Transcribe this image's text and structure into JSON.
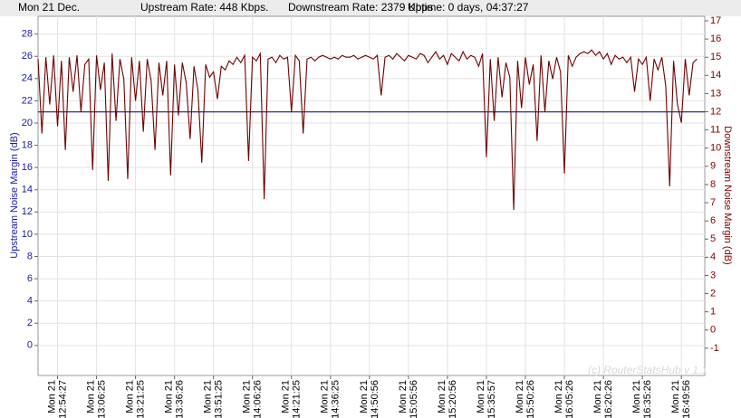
{
  "header": {
    "date": "Mon 21 Dec.",
    "upstream_rate": "Upstream Rate: 448 Kbps.",
    "downstream_rate": "Downstream Rate: 2379 Kbps",
    "uptime": "Uptime: 0 days, 04:37:27"
  },
  "chart_data": {
    "type": "line",
    "ylabel": "Upstream Noise Margin (dB)",
    "y2label": "Downstream Noise Margin (dB)",
    "watermark": "(c) RouterStatsHub v 1.1",
    "x_date_label": "Mon 21",
    "xlim": [
      0,
      171
    ],
    "xticks": [
      {
        "value": 5,
        "label": "12:54:27"
      },
      {
        "value": 15,
        "label": "13:06:25"
      },
      {
        "value": 25,
        "label": "13:21:25"
      },
      {
        "value": 35,
        "label": "13:36:26"
      },
      {
        "value": 45,
        "label": "13:51:25"
      },
      {
        "value": 55,
        "label": "14:06:26"
      },
      {
        "value": 65,
        "label": "14:21:25"
      },
      {
        "value": 75,
        "label": "14:36:25"
      },
      {
        "value": 85,
        "label": "14:50:56"
      },
      {
        "value": 95,
        "label": "15:05:56"
      },
      {
        "value": 105,
        "label": "15:20:56"
      },
      {
        "value": 115,
        "label": "15:35:57"
      },
      {
        "value": 125,
        "label": "15:50:26"
      },
      {
        "value": 135,
        "label": "16:05:26"
      },
      {
        "value": 145,
        "label": "16:20:26"
      },
      {
        "value": 155,
        "label": "16:35:26"
      },
      {
        "value": 165,
        "label": "16:49:56"
      }
    ],
    "ylim": [
      -2.7,
      29.6
    ],
    "yticks": [
      0,
      2,
      4,
      6,
      8,
      10,
      12,
      14,
      16,
      18,
      20,
      22,
      24,
      26,
      28
    ],
    "y2lim": [
      -2.5,
      17.25
    ],
    "y2ticks": [
      -1,
      0,
      1,
      2,
      3,
      4,
      5,
      6,
      7,
      8,
      9,
      10,
      11,
      12,
      13,
      14,
      15,
      16,
      17
    ],
    "grid": true,
    "ycolor": "#1a1aa8",
    "y2color": "#800000",
    "series": [
      {
        "name": "Upstream Noise Margin",
        "color": "#1a1a6e",
        "x": [
          0,
          171
        ],
        "values": [
          21,
          21
        ]
      },
      {
        "name": "Downstream Noise Margin",
        "color": "#6e0000",
        "axis": "y2",
        "values": [
          14.9,
          10.8,
          15.0,
          12.4,
          15.1,
          11.2,
          14.8,
          9.9,
          15.0,
          13.1,
          15.1,
          12.0,
          14.6,
          14.9,
          8.8,
          15.1,
          13.2,
          14.7,
          8.2,
          15.2,
          11.5,
          14.9,
          13.8,
          8.3,
          15.0,
          12.6,
          14.8,
          10.9,
          14.9,
          13.7,
          9.9,
          14.7,
          12.9,
          14.8,
          8.5,
          14.6,
          11.8,
          14.7,
          13.6,
          10.5,
          14.5,
          13.2,
          9.2,
          14.6,
          13.9,
          14.2,
          12.7,
          14.5,
          14.3,
          14.8,
          14.6,
          15.0,
          14.7,
          15.1,
          9.3,
          15.0,
          14.8,
          15.2,
          7.2,
          14.9,
          15.0,
          14.7,
          15.1,
          14.9,
          15.0,
          12.0,
          15.1,
          14.8,
          10.8,
          14.9,
          15.0,
          14.8,
          15.0,
          15.1,
          15.0,
          14.9,
          15.0,
          14.9,
          15.1,
          15.0,
          15.0,
          15.1,
          14.9,
          15.0,
          15.1,
          15.0,
          14.9,
          15.1,
          12.9,
          15.0,
          15.1,
          14.9,
          15.2,
          15.0,
          14.8,
          15.1,
          15.0,
          14.9,
          15.2,
          15.1,
          14.7,
          15.0,
          15.3,
          14.9,
          15.1,
          14.6,
          15.2,
          15.0,
          14.8,
          15.3,
          14.9,
          15.1,
          15.0,
          14.5,
          15.2,
          9.5,
          14.9,
          11.5,
          15.0,
          12.8,
          14.7,
          13.9,
          6.6,
          14.8,
          12.2,
          15.0,
          13.5,
          14.6,
          10.4,
          15.1,
          12.0,
          14.8,
          13.8,
          15.0,
          14.2,
          8.6,
          15.1,
          14.5,
          15.0,
          15.2,
          15.3,
          15.2,
          15.4,
          15.1,
          15.3,
          14.9,
          15.2,
          14.6,
          15.1,
          14.9,
          15.0,
          14.7,
          15.0,
          13.1,
          14.9,
          14.6,
          15.0,
          12.6,
          14.9,
          14.3,
          15.0,
          13.4,
          7.9,
          14.8,
          12.4,
          11.4,
          14.9,
          12.9,
          14.7,
          14.9
        ]
      }
    ]
  }
}
